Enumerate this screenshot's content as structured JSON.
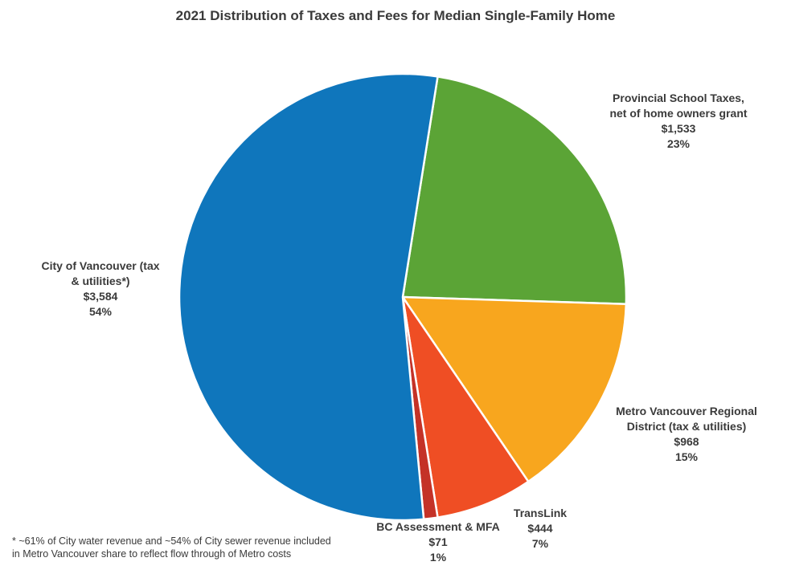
{
  "title": "2021 Distribution of Taxes and Fees for Median Single-Family Home",
  "chart_data": {
    "type": "pie",
    "title": "2021 Distribution of Taxes and Fees for Median Single-Family Home",
    "start_angle_deg": 9,
    "clockwise": true,
    "center": [
      501,
      370
    ],
    "radius": 278,
    "slices": [
      {
        "label": "Provincial School Taxes, net of home owners grant",
        "amount_dollars": 1533,
        "pct": 23,
        "color": "#5ba436"
      },
      {
        "label": "Metro Vancouver Regional District (tax & utilities)",
        "amount_dollars": 968,
        "pct": 15,
        "color": "#f8a61e"
      },
      {
        "label": "TransLink",
        "amount_dollars": 444,
        "pct": 7,
        "color": "#ef4e24"
      },
      {
        "label": "BC Assessment & MFA",
        "amount_dollars": 71,
        "pct": 1,
        "color": "#c43227"
      },
      {
        "label": "City of Vancouver (tax & utilities*)",
        "amount_dollars": 3584,
        "pct": 54,
        "color": "#0f76bc"
      }
    ]
  },
  "labels": {
    "provincial": {
      "line1": "Provincial School Taxes,",
      "line2": "net of home owners grant",
      "amount": "$1,533",
      "pct": "23%"
    },
    "city": {
      "line1": "City of Vancouver (tax",
      "line2": "& utilities*)",
      "amount": "$3,584",
      "pct": "54%"
    },
    "metro": {
      "line1": "Metro Vancouver Regional",
      "line2": "District (tax & utilities)",
      "amount": "$968",
      "pct": "15%"
    },
    "translink": {
      "line1": "TransLink",
      "amount": "$444",
      "pct": "7%"
    },
    "bc": {
      "line1": "BC Assessment & MFA",
      "amount": "$71",
      "pct": "1%"
    }
  },
  "footnote": {
    "line1": "* ~61% of City water revenue and ~54% of City sewer revenue included",
    "line2": "in Metro Vancouver share to reflect flow through of Metro costs"
  }
}
